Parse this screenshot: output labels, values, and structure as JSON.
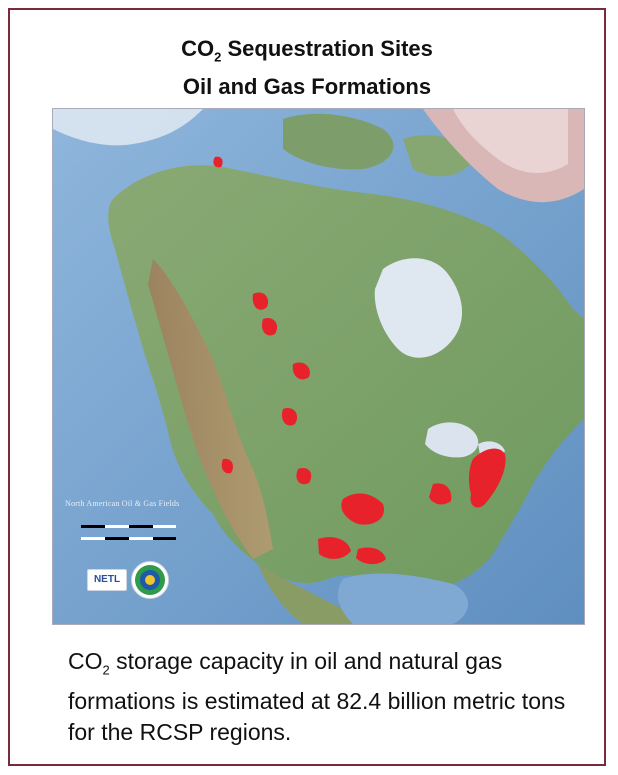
{
  "title": {
    "line1_prefix": "CO",
    "line1_sub": "2",
    "line1_suffix": " Sequestration Sites",
    "line2": "Oil and Gas Formations"
  },
  "map": {
    "legend_text": "North American Oil & Gas Fields",
    "logo_netl": "NETL",
    "colors": {
      "ocean": "#6e9cc8",
      "land": "#7aa06a",
      "mountains": "#b08a6a",
      "ice": "#e6ecf3",
      "sites": "#e8222a"
    }
  },
  "caption": {
    "prefix": "CO",
    "sub": "2",
    "text": " storage capacity in oil and natural gas formations is estimated at 82.4 billion metric tons for the RCSP regions."
  }
}
